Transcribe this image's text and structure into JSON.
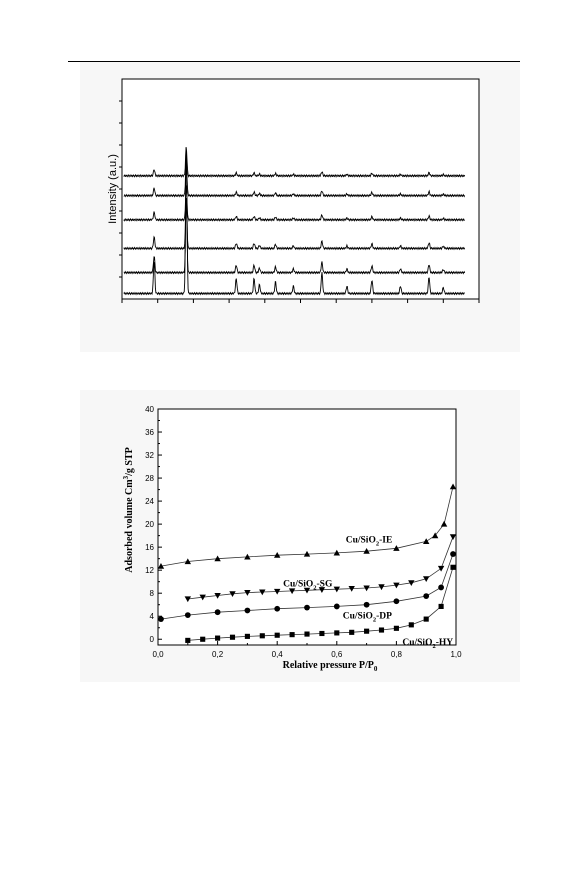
{
  "chart_data": [
    {
      "type": "line",
      "title": "",
      "xlabel": "",
      "ylabel": "Intensity (a.u.)",
      "xlim": [
        0,
        10
      ],
      "ylim": [
        0,
        10
      ],
      "grid": false,
      "legend": "none",
      "peaks": {
        "x": [
          0.9,
          1.8,
          3.2,
          3.7,
          3.85,
          4.3,
          4.8,
          5.6,
          6.3,
          7.0,
          7.8,
          8.6,
          9.0
        ],
        "relative_height": [
          0.22,
          1.0,
          0.1,
          0.1,
          0.06,
          0.08,
          0.05,
          0.14,
          0.05,
          0.09,
          0.05,
          0.11,
          0.04
        ]
      },
      "series": [
        {
          "offset": 1.2,
          "scale": 1.0
        },
        {
          "offset": 2.3,
          "scale": 0.9
        },
        {
          "offset": 3.6,
          "scale": 0.6
        },
        {
          "offset": 4.7,
          "scale": 0.6
        },
        {
          "offset": 5.6,
          "scale": 0.5
        }
      ]
    },
    {
      "type": "line",
      "title": "",
      "xlabel": "Relative pressure P/P",
      "xlabel_sub": "0",
      "ylabel": "Adsorbed volume Cm",
      "ylabel_sup": "3",
      "ylabel_tail": "/g STP",
      "xlim": [
        0.0,
        1.0
      ],
      "ylim": [
        -1,
        40
      ],
      "x_ticks": [
        "0,0",
        "0,2",
        "0,4",
        "0,6",
        "0,8",
        "1,0"
      ],
      "y_ticks": [
        "0",
        "4",
        "8",
        "12",
        "16",
        "20",
        "24",
        "28",
        "32",
        "36",
        "40"
      ],
      "grid": false,
      "legend": "inline labels",
      "series": [
        {
          "name_main": "Cu/SiO",
          "name_sub": "2",
          "name_tail": "-IE",
          "marker": "triangle-up",
          "label_pos": [
            0.63,
            16.8
          ],
          "x": [
            0.01,
            0.1,
            0.2,
            0.3,
            0.4,
            0.5,
            0.6,
            0.7,
            0.8,
            0.9,
            0.93,
            0.96,
            0.99
          ],
          "y": [
            12.7,
            13.5,
            14.0,
            14.3,
            14.6,
            14.8,
            15.0,
            15.3,
            15.8,
            17.0,
            18.0,
            20.0,
            26.5
          ]
        },
        {
          "name_main": "Cu/SiO",
          "name_sub": "2",
          "name_tail": "-SG",
          "marker": "triangle-down",
          "label_pos": [
            0.42,
            9.2
          ],
          "x": [
            0.1,
            0.15,
            0.2,
            0.25,
            0.3,
            0.35,
            0.4,
            0.45,
            0.5,
            0.55,
            0.6,
            0.65,
            0.7,
            0.75,
            0.8,
            0.85,
            0.9,
            0.95,
            0.99
          ],
          "y": [
            7.0,
            7.3,
            7.6,
            7.9,
            8.1,
            8.2,
            8.3,
            8.4,
            8.5,
            8.6,
            8.7,
            8.8,
            8.9,
            9.1,
            9.4,
            9.8,
            10.5,
            12.3,
            17.8
          ]
        },
        {
          "name_main": "Cu/SiO",
          "name_sub": "2",
          "name_tail": "-DP",
          "marker": "circle",
          "label_pos": [
            0.62,
            3.6
          ],
          "x": [
            0.01,
            0.1,
            0.2,
            0.3,
            0.4,
            0.5,
            0.6,
            0.7,
            0.8,
            0.9,
            0.95,
            0.99
          ],
          "y": [
            3.5,
            4.2,
            4.7,
            5.0,
            5.3,
            5.5,
            5.7,
            6.0,
            6.6,
            7.5,
            9.0,
            14.8
          ]
        },
        {
          "name_main": "Cu/SiO",
          "name_sub": "2",
          "name_tail": "-HY",
          "marker": "square",
          "label_pos": [
            0.82,
            -1.0
          ],
          "x": [
            0.1,
            0.15,
            0.2,
            0.25,
            0.3,
            0.35,
            0.4,
            0.45,
            0.5,
            0.55,
            0.6,
            0.65,
            0.7,
            0.75,
            0.8,
            0.85,
            0.9,
            0.95,
            0.99
          ],
          "y": [
            -0.2,
            0.0,
            0.2,
            0.35,
            0.5,
            0.6,
            0.7,
            0.8,
            0.9,
            1.0,
            1.1,
            1.2,
            1.4,
            1.6,
            1.9,
            2.5,
            3.5,
            5.7,
            12.5
          ]
        }
      ]
    }
  ]
}
